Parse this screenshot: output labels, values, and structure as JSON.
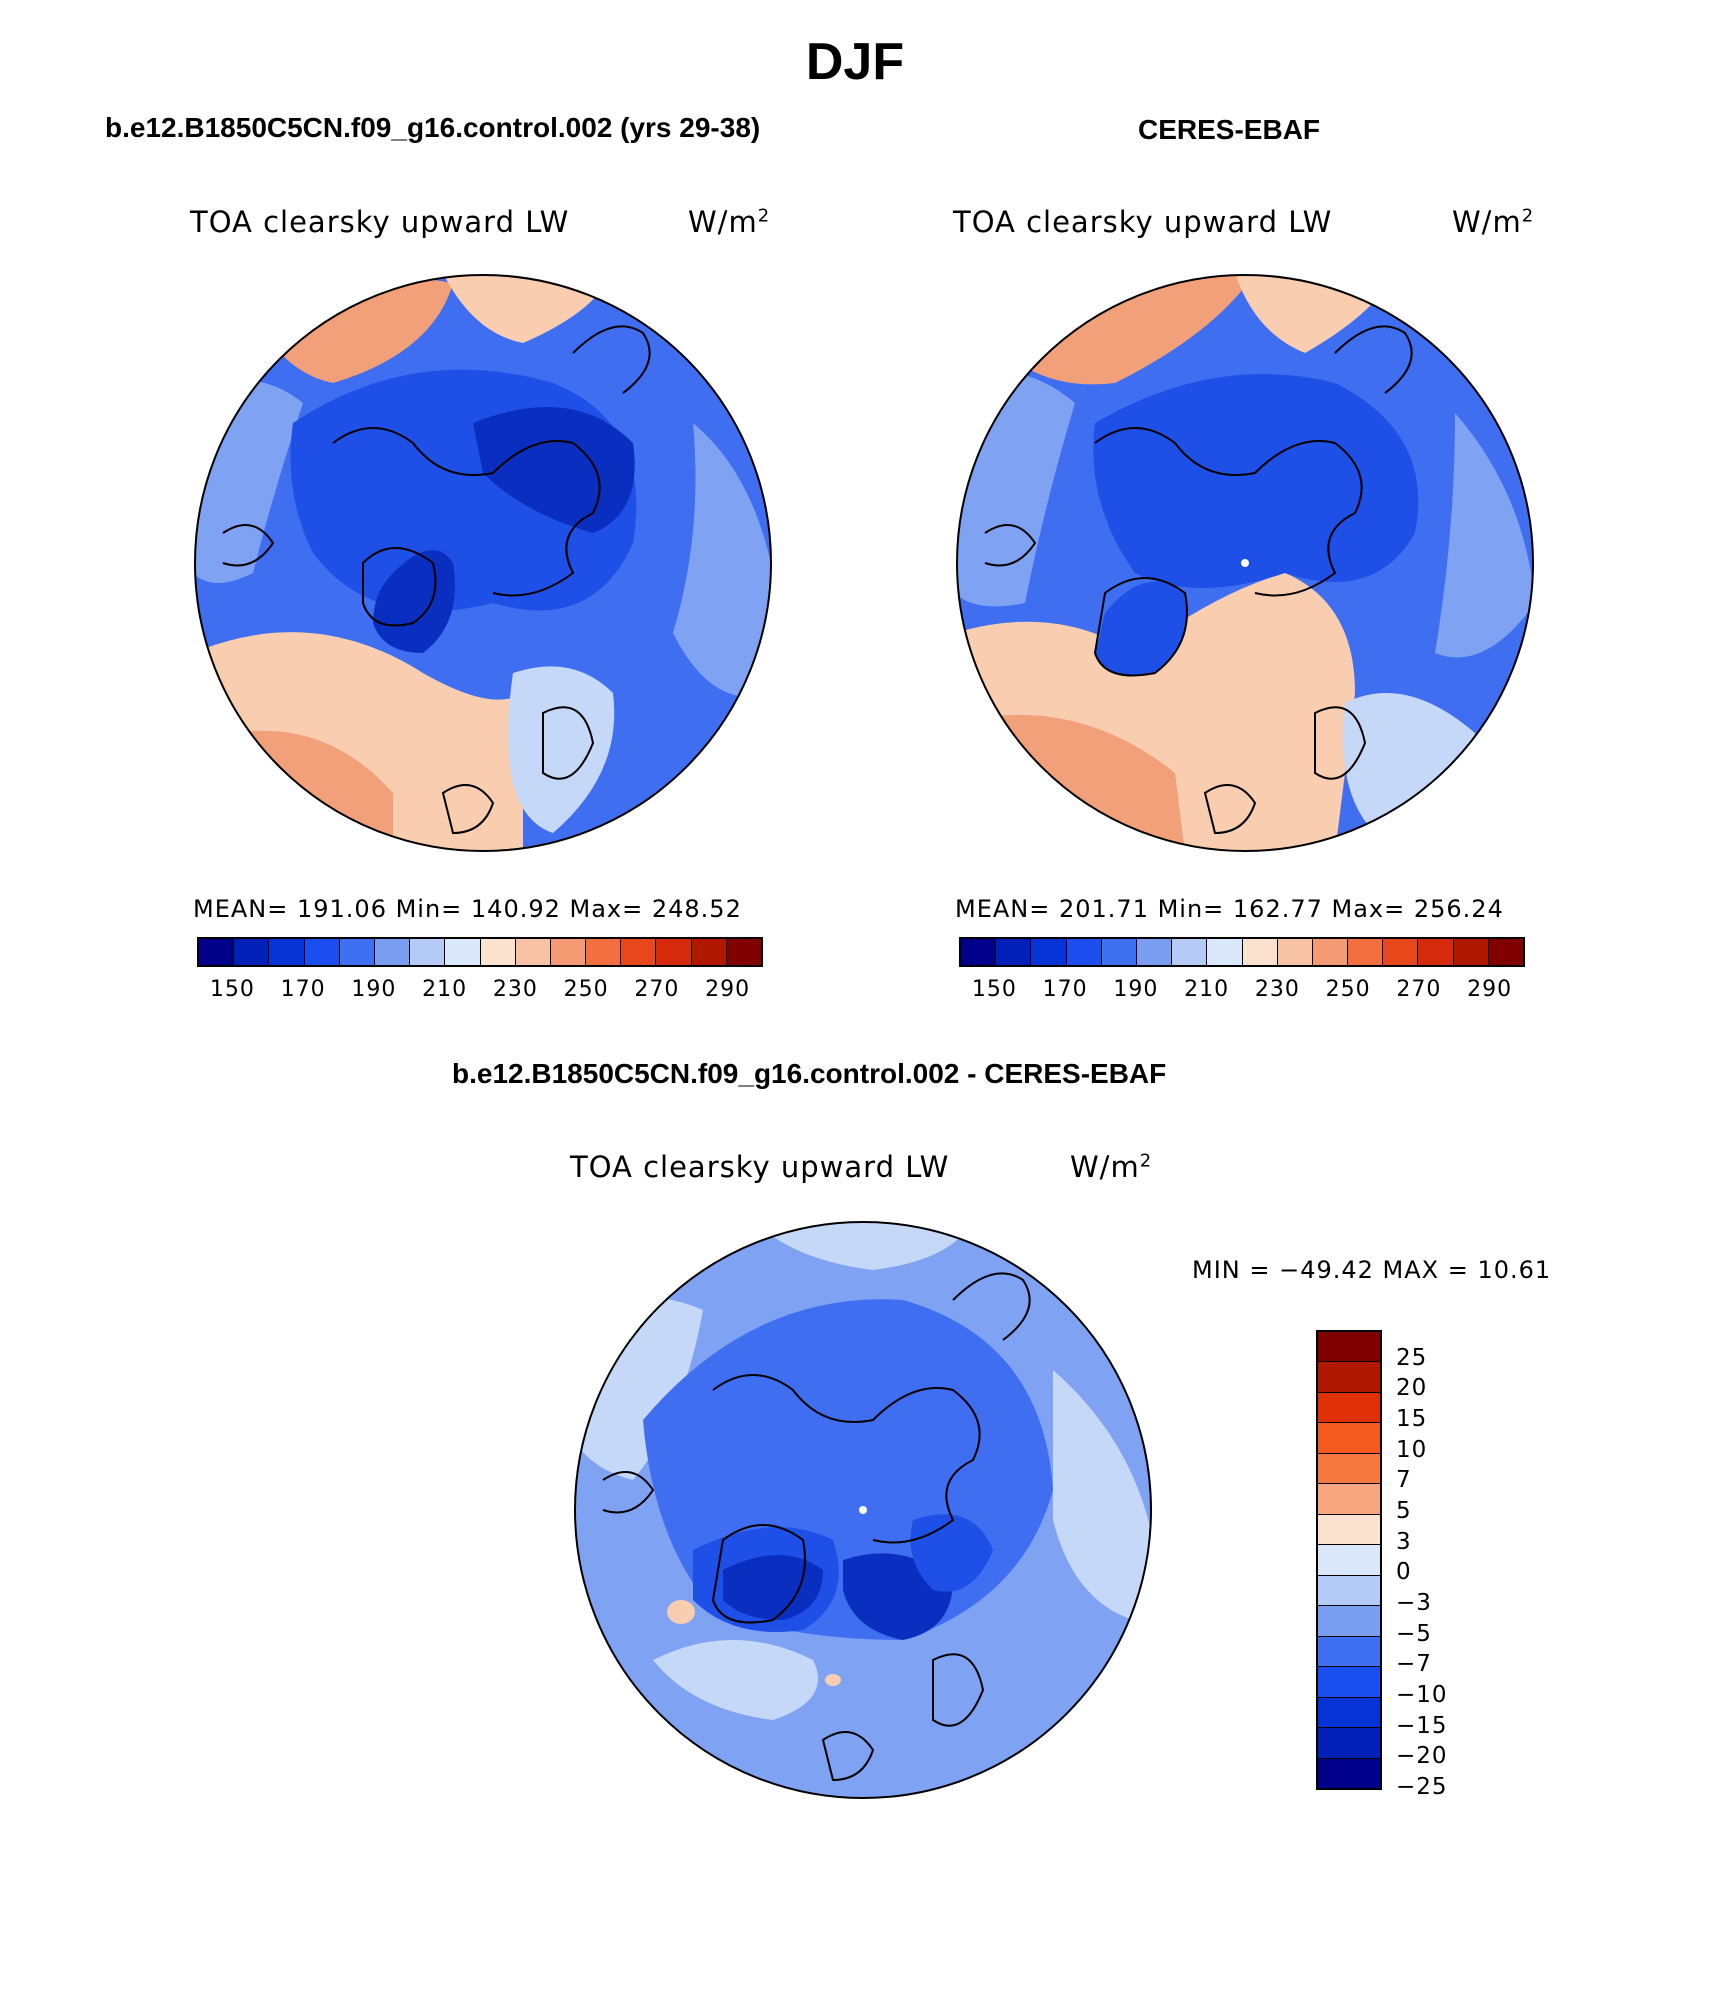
{
  "title": "DJF",
  "panels": {
    "model": {
      "title": "b.e12.B1850C5CN.f09_g16.control.002 (yrs 29-38)",
      "variable": "TOA clearsky upward LW",
      "units_base": "W/m",
      "units_exp": "2",
      "stats": "MEAN= 191.06   Min= 140.92   Max= 248.52"
    },
    "obs": {
      "title": "CERES-EBAF",
      "variable": "TOA clearsky upward LW",
      "units_base": "W/m",
      "units_exp": "2",
      "stats": "MEAN= 201.71   Min= 162.77   Max= 256.24"
    },
    "diff": {
      "title": "b.e12.B1850C5CN.f09_g16.control.002 - CERES-EBAF",
      "variable": "TOA clearsky upward LW",
      "units_base": "W/m",
      "units_exp": "2",
      "stats": "MIN = −49.42 MAX =   10.61"
    }
  },
  "colorbar_abs": {
    "colors": [
      "#00008b",
      "#0020b8",
      "#0633d6",
      "#1a4ef0",
      "#3e70f2",
      "#7a9ff2",
      "#b4caf7",
      "#dbe8fb",
      "#fbe3d0",
      "#f8c2a5",
      "#f59b73",
      "#f26f3f",
      "#e8471b",
      "#d62a0c",
      "#b01800",
      "#800000"
    ],
    "labels": [
      "150",
      "170",
      "190",
      "210",
      "230",
      "250",
      "270",
      "290"
    ]
  },
  "colorbar_diff": {
    "colors": [
      "#800000",
      "#b01800",
      "#e03008",
      "#f25a1e",
      "#f5783e",
      "#f8a680",
      "#fbe3d0",
      "#dbe8fb",
      "#b4caf7",
      "#7a9ff2",
      "#3e70f2",
      "#1a4ef0",
      "#0633d6",
      "#0020b8",
      "#00008b"
    ],
    "labels": [
      "25",
      "20",
      "15",
      "10",
      "7",
      "5",
      "3",
      "0",
      "−3",
      "−5",
      "−7",
      "−10",
      "−15",
      "−20",
      "−25"
    ]
  },
  "map_colors": {
    "deep": "#0a2fc0",
    "dark": "#1e4fe6",
    "mid": "#3f6ef0",
    "light": "#7fa2f2",
    "pale": "#c6d8f8",
    "warm_pale": "#f8cdb0",
    "warm": "#f2a07a",
    "warm_dark": "#ec7a4e",
    "coast": "#000000"
  }
}
